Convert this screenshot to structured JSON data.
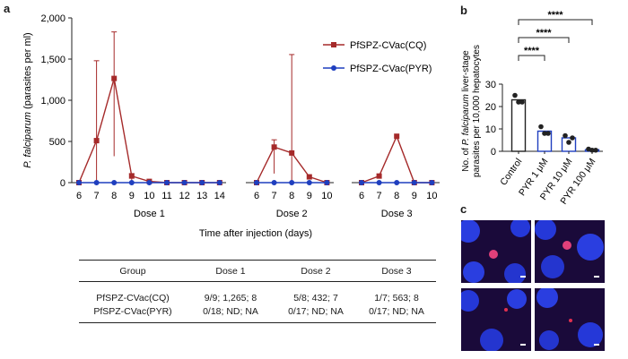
{
  "panels": {
    "a": "a",
    "b": "b",
    "c": "c"
  },
  "colors": {
    "cq": "#a52a2a",
    "pyr": "#1f3fbf",
    "axis": "#222222"
  },
  "chart_data": [
    {
      "id": "panel-a",
      "type": "line",
      "title": "",
      "ylabel_italic": "P. falciparum",
      "ylabel_rest": " (parasites per ml)",
      "xlabel": "Time after injection (days)",
      "ylim": [
        0,
        2000
      ],
      "yticks": [
        "0",
        "500",
        "1,000",
        "1,500",
        "2,000"
      ],
      "ytick_values": [
        0,
        500,
        1000,
        1500,
        2000
      ],
      "legend_position": "top-right",
      "groups": [
        {
          "name": "Dose 1",
          "days": [
            "6",
            "7",
            "8",
            "9",
            "10",
            "11",
            "12",
            "13",
            "14"
          ]
        },
        {
          "name": "Dose 2",
          "days": [
            "6",
            "7",
            "8",
            "9",
            "10"
          ]
        },
        {
          "name": "Dose 3",
          "days": [
            "6",
            "7",
            "8",
            "9",
            "10"
          ]
        }
      ],
      "series": [
        {
          "name": "PfSPZ-CVac(CQ)",
          "color": "#a52a2a",
          "marker": "square",
          "values": [
            [
              0,
              510,
              1265,
              80,
              15,
              0,
              0,
              0,
              0
            ],
            [
              0,
              432,
              360,
              70,
              0
            ],
            [
              0,
              80,
              563,
              0,
              0
            ]
          ],
          "error_upper": [
            [
              null,
              1480,
              1830,
              110,
              null,
              null,
              null,
              null,
              null
            ],
            [
              null,
              520,
              1555,
              null,
              null
            ],
            [
              null,
              null,
              null,
              null,
              null
            ]
          ],
          "error_lower": [
            [
              null,
              0,
              320,
              null,
              null,
              null,
              null,
              null,
              null
            ],
            [
              null,
              110,
              0,
              null,
              null
            ],
            [
              null,
              null,
              null,
              null,
              null
            ]
          ]
        },
        {
          "name": "PfSPZ-CVac(PYR)",
          "color": "#1f3fbf",
          "marker": "circle",
          "values": [
            [
              0,
              0,
              0,
              0,
              0,
              0,
              0,
              0,
              0
            ],
            [
              0,
              0,
              0,
              0,
              0
            ],
            [
              0,
              0,
              0,
              0,
              0
            ]
          ]
        }
      ]
    },
    {
      "id": "panel-b",
      "type": "bar",
      "ylabel_prefix": "No. of ",
      "ylabel_italic": "P. falciparum",
      "ylabel_rest": " liver-stage",
      "ylabel_line2": "parasites per 10,000 hepatocytes",
      "ylim": [
        0,
        30
      ],
      "yticks": [
        "0",
        "10",
        "20",
        "30"
      ],
      "ytick_values": [
        0,
        10,
        20,
        30
      ],
      "categories": [
        "Control",
        "PYR 1 μM",
        "PYR 10 μM",
        "PYR 100 μM"
      ],
      "values": [
        23,
        9,
        6,
        0.7
      ],
      "points": [
        [
          25,
          22,
          22
        ],
        [
          11,
          8,
          8
        ],
        [
          7,
          4,
          6
        ],
        [
          1,
          0.5,
          0.5
        ]
      ],
      "bar_colors": [
        "#222222",
        "#1f3fbf",
        "#1f3fbf",
        "#1f3fbf"
      ],
      "significance": [
        "****",
        "****",
        "****"
      ]
    }
  ],
  "table": {
    "headers": [
      "Group",
      "Dose 1",
      "Dose 2",
      "Dose 3"
    ],
    "rows": [
      [
        "PfSPZ-CVac(CQ)",
        "9/9; 1,265; 8",
        "5/8; 432; 7",
        "1/7; 563; 8"
      ],
      [
        "PfSPZ-CVac(PYR)",
        "0/18; ND; NA",
        "0/17; ND; NA",
        "0/17; ND; NA"
      ]
    ]
  },
  "micrographs": {
    "tiles": [
      {
        "name": "top-left",
        "parasite_color": "#e0407a"
      },
      {
        "name": "top-right",
        "parasite_color": "#e0407a"
      },
      {
        "name": "bottom-left",
        "parasite_color": "#e03050"
      },
      {
        "name": "bottom-right",
        "parasite_color": "#e03050"
      }
    ]
  }
}
